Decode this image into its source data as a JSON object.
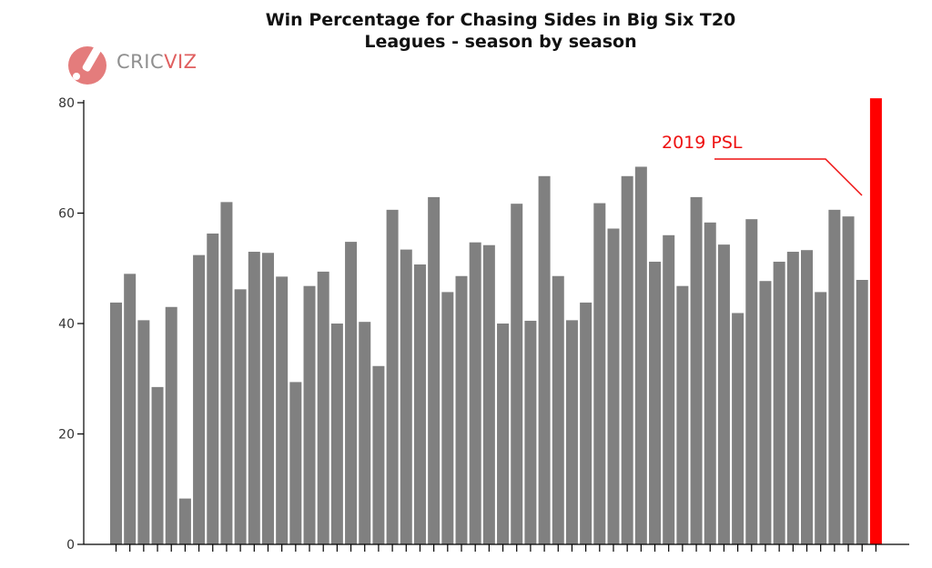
{
  "logo": {
    "text_part1": "CRIC",
    "text_part2": "VIZ",
    "icon": "cricket-bat-ball-icon"
  },
  "chart_data": {
    "type": "bar",
    "title_line1": "Win Percentage for Chasing Sides in Big Six T20",
    "title_line2": "Leagues - season by season",
    "xlabel": "",
    "ylabel": "",
    "ylim": [
      0,
      80
    ],
    "yticks": [
      0,
      20,
      40,
      60,
      80
    ],
    "grid": false,
    "values": [
      43.8,
      49,
      40.6,
      28.5,
      43,
      8.3,
      52.4,
      56.3,
      62,
      46.2,
      53,
      52.8,
      48.5,
      29.4,
      46.8,
      49.4,
      40,
      54.8,
      40.3,
      32.3,
      60.6,
      53.4,
      50.7,
      62.9,
      45.7,
      48.6,
      54.7,
      54.2,
      40,
      61.7,
      40.5,
      66.7,
      48.6,
      40.6,
      43.8,
      61.8,
      57.2,
      66.7,
      68.4,
      51.2,
      56,
      46.8,
      62.9,
      58.3,
      54.3,
      41.9,
      58.9,
      47.7,
      51.2,
      53,
      53.3,
      45.7,
      60.6,
      59.4,
      47.9
    ],
    "highlight": {
      "label": "2019 PSL",
      "value": 80.8,
      "color": "#ff0000"
    },
    "bar_color": "#808080"
  }
}
